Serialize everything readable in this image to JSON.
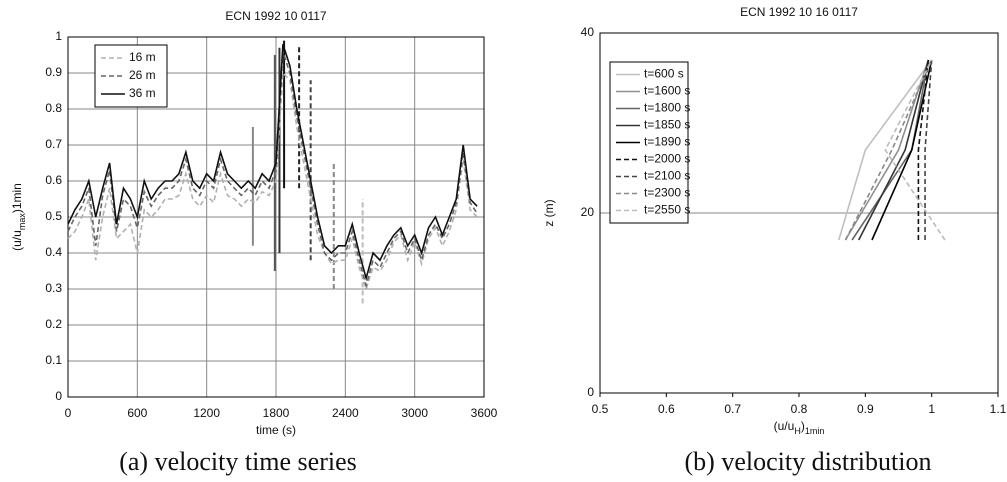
{
  "chart_data": [
    {
      "type": "line",
      "title": "ECN 1992 10 0117",
      "caption": "(a) velocity time series",
      "xlabel": [
        {
          "text": "time (s)"
        }
      ],
      "ylabel": [
        {
          "text": "(u/u"
        },
        {
          "text": "max",
          "sub": true
        },
        {
          "text": ")1min"
        }
      ],
      "xlim": [
        0,
        3600
      ],
      "xticks": [
        0,
        600,
        1200,
        1800,
        2400,
        3000,
        3600
      ],
      "ylim": [
        0,
        1
      ],
      "yticks": [
        0,
        0.1,
        0.2,
        0.3,
        0.4,
        0.5,
        0.6,
        0.7,
        0.8,
        0.9,
        1
      ],
      "grid": "both",
      "legend": "upper left",
      "x": [
        0,
        60,
        120,
        180,
        240,
        300,
        360,
        420,
        480,
        540,
        600,
        660,
        720,
        780,
        840,
        900,
        960,
        1020,
        1080,
        1140,
        1200,
        1260,
        1320,
        1380,
        1440,
        1500,
        1560,
        1620,
        1680,
        1740,
        1800,
        1860,
        1920,
        1980,
        2040,
        2100,
        2160,
        2220,
        2280,
        2340,
        2400,
        2460,
        2520,
        2580,
        2640,
        2700,
        2760,
        2820,
        2880,
        2940,
        3000,
        3060,
        3120,
        3180,
        3240,
        3300,
        3360,
        3420,
        3480,
        3540
      ],
      "series": [
        {
          "name": "16 m",
          "color": "#b0b0b0",
          "style": "dashed",
          "values": [
            0.44,
            0.46,
            0.5,
            0.55,
            0.38,
            0.5,
            0.58,
            0.44,
            0.46,
            0.48,
            0.4,
            0.52,
            0.5,
            0.52,
            0.55,
            0.55,
            0.56,
            0.62,
            0.55,
            0.53,
            0.56,
            0.54,
            0.62,
            0.56,
            0.55,
            0.53,
            0.55,
            0.54,
            0.57,
            0.56,
            0.6,
            0.9,
            0.88,
            0.75,
            0.65,
            0.55,
            0.45,
            0.4,
            0.37,
            0.38,
            0.38,
            0.44,
            0.36,
            0.3,
            0.36,
            0.35,
            0.38,
            0.43,
            0.45,
            0.38,
            0.43,
            0.37,
            0.44,
            0.47,
            0.42,
            0.46,
            0.52,
            0.66,
            0.52,
            0.5
          ]
        },
        {
          "name": "26 m",
          "color": "#666666",
          "style": "dashed",
          "values": [
            0.46,
            0.5,
            0.53,
            0.58,
            0.42,
            0.56,
            0.63,
            0.46,
            0.55,
            0.53,
            0.47,
            0.57,
            0.53,
            0.56,
            0.58,
            0.58,
            0.6,
            0.66,
            0.58,
            0.56,
            0.6,
            0.58,
            0.66,
            0.6,
            0.58,
            0.56,
            0.58,
            0.56,
            0.6,
            0.58,
            0.63,
            0.96,
            0.9,
            0.78,
            0.68,
            0.58,
            0.48,
            0.4,
            0.38,
            0.4,
            0.4,
            0.46,
            0.38,
            0.31,
            0.38,
            0.36,
            0.4,
            0.44,
            0.46,
            0.4,
            0.44,
            0.38,
            0.45,
            0.48,
            0.44,
            0.48,
            0.54,
            0.68,
            0.54,
            0.51
          ]
        },
        {
          "name": "36 m",
          "color": "#111111",
          "style": "solid",
          "values": [
            0.48,
            0.52,
            0.55,
            0.6,
            0.5,
            0.58,
            0.65,
            0.48,
            0.58,
            0.55,
            0.5,
            0.6,
            0.55,
            0.58,
            0.6,
            0.6,
            0.62,
            0.68,
            0.6,
            0.58,
            0.62,
            0.6,
            0.68,
            0.62,
            0.6,
            0.58,
            0.6,
            0.58,
            0.62,
            0.6,
            0.65,
            0.98,
            0.92,
            0.8,
            0.7,
            0.6,
            0.5,
            0.42,
            0.4,
            0.42,
            0.42,
            0.48,
            0.4,
            0.33,
            0.4,
            0.38,
            0.42,
            0.45,
            0.47,
            0.42,
            0.45,
            0.4,
            0.47,
            0.5,
            0.45,
            0.5,
            0.55,
            0.7,
            0.55,
            0.53
          ]
        }
      ],
      "vlines": [
        {
          "x": 1600,
          "ymin": 0.42,
          "ymax": 0.75,
          "color": "#888888",
          "style": "solid"
        },
        {
          "x": 1790,
          "ymin": 0.35,
          "ymax": 0.95,
          "color": "#555555",
          "style": "solid"
        },
        {
          "x": 1830,
          "ymin": 0.4,
          "ymax": 0.97,
          "color": "#333333",
          "style": "solid"
        },
        {
          "x": 1870,
          "ymin": 0.58,
          "ymax": 0.99,
          "color": "#111111",
          "style": "solid"
        },
        {
          "x": 2000,
          "ymin": 0.58,
          "ymax": 0.98,
          "color": "#222222",
          "style": "dashed"
        },
        {
          "x": 2100,
          "ymin": 0.38,
          "ymax": 0.88,
          "color": "#444444",
          "style": "dashed"
        },
        {
          "x": 2300,
          "ymin": 0.3,
          "ymax": 0.65,
          "color": "#888888",
          "style": "dashed"
        },
        {
          "x": 2550,
          "ymin": 0.26,
          "ymax": 0.55,
          "color": "#bbbbbb",
          "style": "dashed"
        }
      ]
    },
    {
      "type": "line",
      "title": "ECN 1992 10 16 0117",
      "caption": "(b) velocity distribution",
      "xlabel": [
        {
          "text": "(u/u"
        },
        {
          "text": "H",
          "sub": true
        },
        {
          "text": ")"
        },
        {
          "text": "1min",
          "sub": true
        }
      ],
      "ylabel": [
        {
          "text": "z (m)"
        }
      ],
      "xlim": [
        0.5,
        1.1
      ],
      "xticks": [
        0.5,
        0.6,
        0.7,
        0.8,
        0.9,
        1,
        1.1
      ],
      "ylim": [
        0,
        40
      ],
      "yticks": [
        0,
        20,
        40
      ],
      "grid": "y",
      "legend": "upper left",
      "series": [
        {
          "name": "t=600 s",
          "color": "#c0c0c0",
          "style": "solid",
          "x": [
            0.86,
            0.9,
            1.0
          ],
          "values": [
            17,
            27,
            37
          ]
        },
        {
          "name": "t=1600 s",
          "color": "#909090",
          "style": "solid",
          "x": [
            0.87,
            0.95,
            0.995
          ],
          "values": [
            17,
            27,
            37
          ]
        },
        {
          "name": "t=1800 s",
          "color": "#666666",
          "style": "solid",
          "x": [
            0.88,
            0.97,
            0.995
          ],
          "values": [
            17,
            27,
            37
          ]
        },
        {
          "name": "t=1850 s",
          "color": "#333333",
          "style": "solid",
          "x": [
            0.89,
            0.96,
            0.995
          ],
          "values": [
            17,
            27,
            37
          ]
        },
        {
          "name": "t=1890 s",
          "color": "#000000",
          "style": "solid",
          "x": [
            0.91,
            0.97,
            1.0
          ],
          "values": [
            17,
            27,
            37
          ]
        },
        {
          "name": "t=2000 s",
          "color": "#111111",
          "style": "dashed",
          "x": [
            0.98,
            0.98,
            0.995
          ],
          "values": [
            17,
            27,
            37
          ]
        },
        {
          "name": "t=2100 s",
          "color": "#444444",
          "style": "dashed",
          "x": [
            0.99,
            0.99,
            1.0
          ],
          "values": [
            17,
            27,
            37
          ]
        },
        {
          "name": "t=2300 s",
          "color": "#888888",
          "style": "dashed",
          "x": [
            0.87,
            0.94,
            1.0
          ],
          "values": [
            17,
            27,
            37
          ]
        },
        {
          "name": "t=2550 s",
          "color": "#bbbbbb",
          "style": "dashed",
          "x": [
            1.02,
            0.93,
            1.0
          ],
          "values": [
            17,
            27,
            37
          ]
        }
      ]
    }
  ]
}
